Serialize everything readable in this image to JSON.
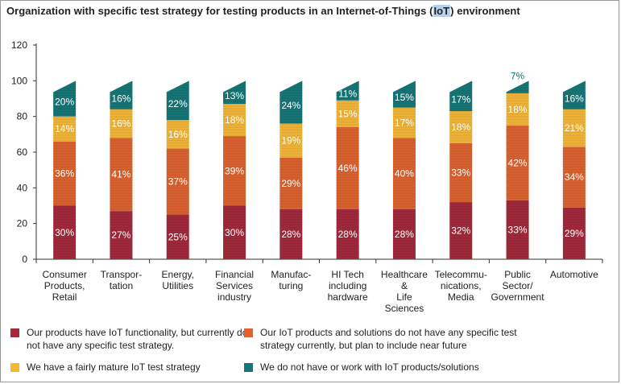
{
  "chart_data": {
    "type": "bar",
    "stacked": true,
    "title_parts": [
      "Organization with specific test strategy for testing products in an Internet-of-Things (",
      "IoT",
      ") environment"
    ],
    "title": "Organization with specific test strategy for testing products in an Internet-of-Things (IoT) environment",
    "categories": [
      [
        "Consumer",
        "Products,",
        "Retail"
      ],
      [
        "Transpor-",
        "tation"
      ],
      [
        "Energy,",
        "Utilities"
      ],
      [
        "Financial",
        "Services",
        "industry"
      ],
      [
        "Manufac-",
        "turing"
      ],
      [
        "HI Tech",
        "including",
        "hardware"
      ],
      [
        "Healthcare",
        "&",
        "Life",
        "Sciences"
      ],
      [
        "Telecommu-",
        "nications,",
        "Media"
      ],
      [
        "Public",
        "Sector/",
        "Government"
      ],
      [
        "Automotive"
      ]
    ],
    "series": [
      {
        "name": "Our products have IoT functionality, but currently do not have any specific test strategy.",
        "color": "#a8283a",
        "values": [
          30,
          27,
          25,
          30,
          28,
          28,
          28,
          32,
          33,
          29
        ]
      },
      {
        "name": "Our IoT products and solutions do not have any specific test strategy currently, but plan to include near future",
        "color": "#e3622c",
        "values": [
          36,
          41,
          37,
          39,
          29,
          46,
          40,
          33,
          42,
          34
        ]
      },
      {
        "name": "We have a fairly mature IoT test strategy",
        "color": "#f7b731",
        "values": [
          14,
          16,
          16,
          18,
          19,
          15,
          17,
          18,
          18,
          21
        ]
      },
      {
        "name": "We do not  have or work with  IoT products/solutions",
        "color": "#13787a",
        "values": [
          20,
          16,
          22,
          13,
          24,
          11,
          15,
          17,
          7,
          16
        ]
      }
    ],
    "data_labels": [
      [
        "30%",
        "27%",
        "25%",
        "30%",
        "28%",
        "28%",
        "28%",
        "32%",
        "33%",
        "29%"
      ],
      [
        "36%",
        "41%",
        "37%",
        "39%",
        "29%",
        "46%",
        "40%",
        "33%",
        "42%",
        "34%"
      ],
      [
        "14%",
        "16%",
        "16%",
        "18%",
        "19%",
        "15%",
        "17%",
        "18%",
        "18%",
        "21%"
      ],
      [
        "20%",
        "16%",
        "22%",
        "13%",
        "24%",
        "11%",
        "15%",
        "17%",
        "7%",
        "16%"
      ]
    ],
    "yticks": [
      "0",
      "20",
      "40",
      "60",
      "80",
      "100",
      "120"
    ],
    "ylim": [
      0,
      120
    ],
    "grid": false,
    "legend": "bottom"
  }
}
